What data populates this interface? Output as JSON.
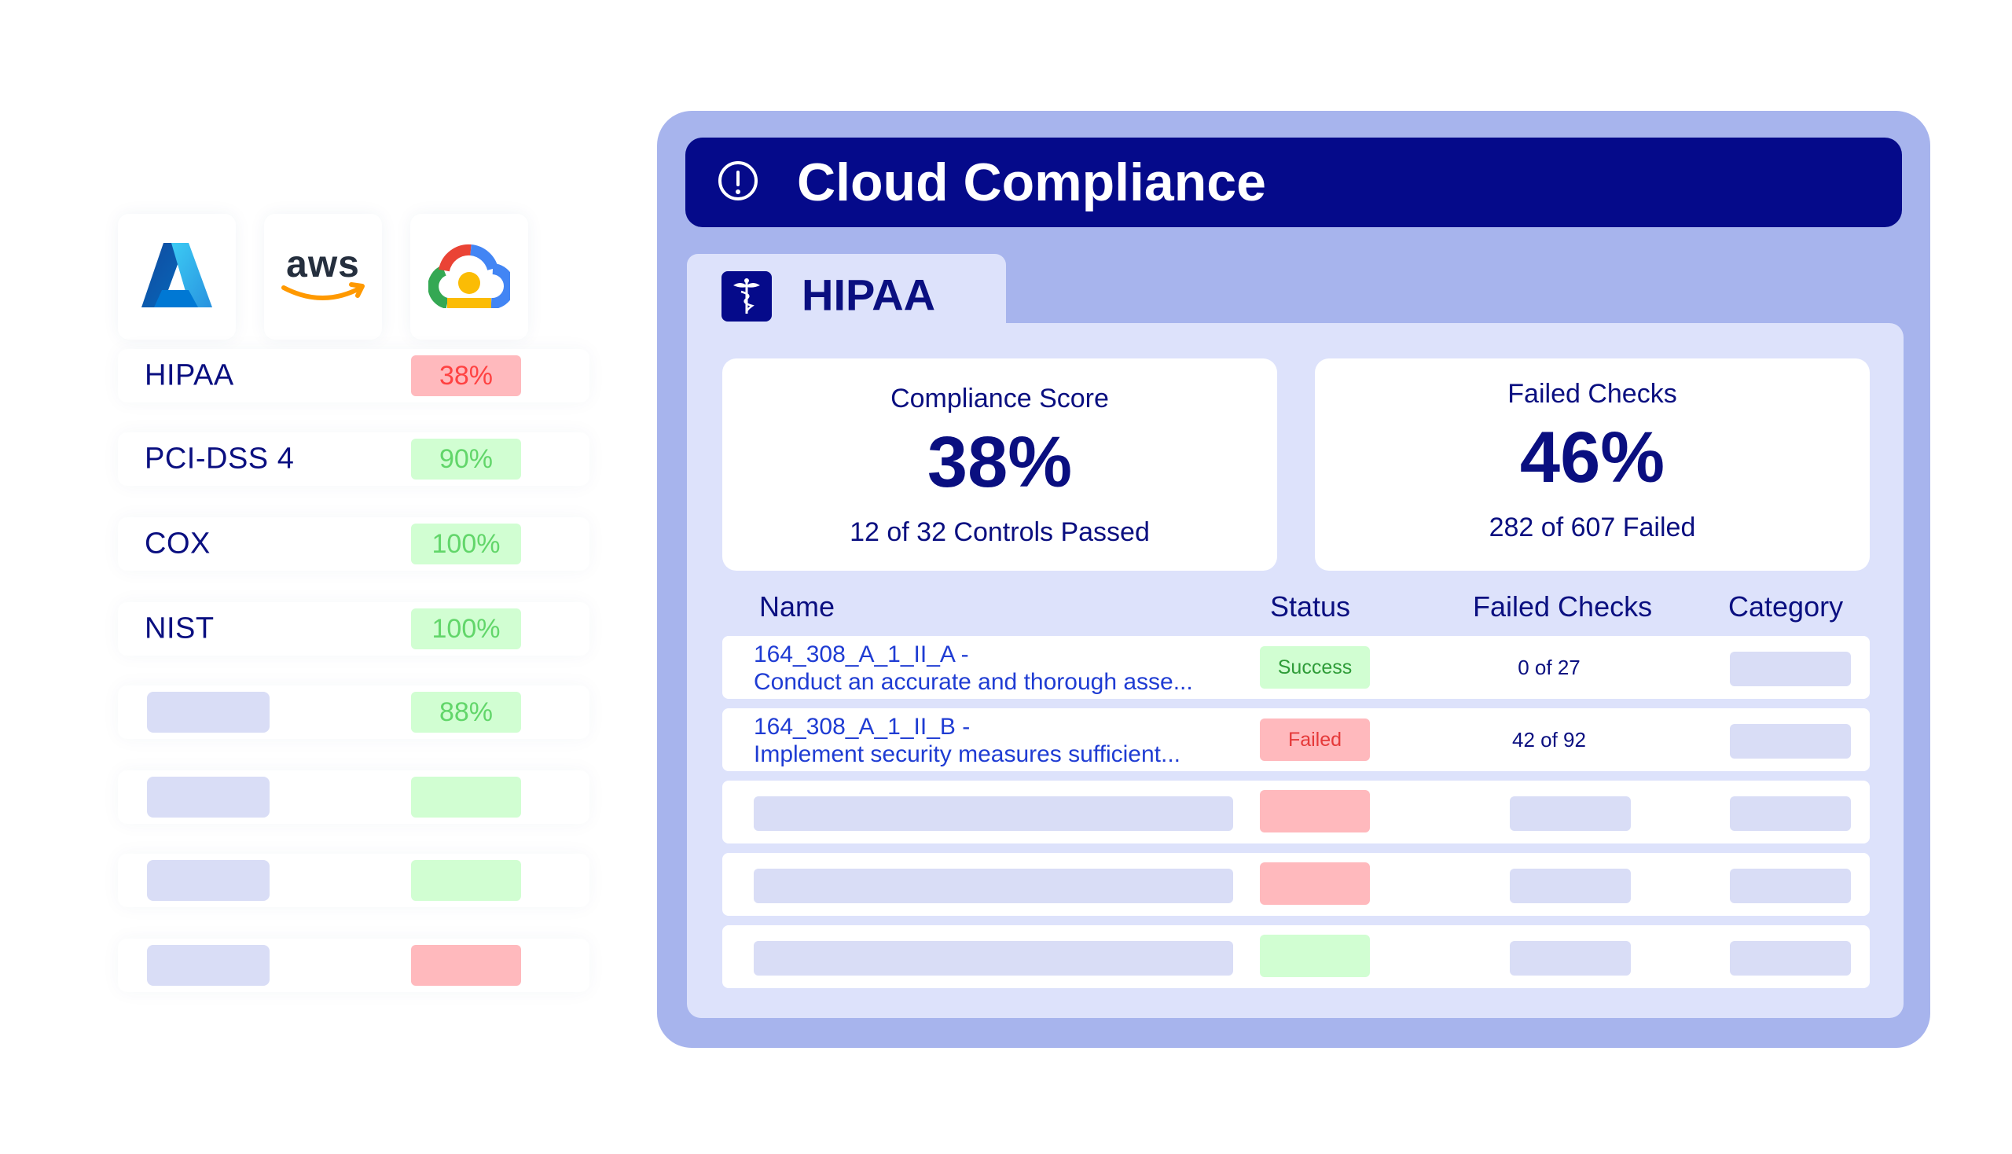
{
  "providers": [
    {
      "name": "Azure",
      "icon": "azure-icon"
    },
    {
      "name": "aws",
      "icon": "aws-icon"
    },
    {
      "name": "Google Cloud",
      "icon": "google-cloud-icon"
    }
  ],
  "frameworks": [
    {
      "name": "HIPAA",
      "score": "38%",
      "status": "red"
    },
    {
      "name": "PCI-DSS 4",
      "score": "90%",
      "status": "green"
    },
    {
      "name": "COX",
      "score": "100%",
      "status": "green"
    },
    {
      "name": "NIST",
      "score": "100%",
      "status": "green"
    },
    {
      "name": "",
      "score": "88%",
      "status": "green"
    },
    {
      "name": "",
      "score": "",
      "status": "green"
    },
    {
      "name": "",
      "score": "",
      "status": "green"
    },
    {
      "name": "",
      "score": "",
      "status": "red"
    }
  ],
  "header": {
    "title": "Cloud Compliance",
    "icon": "alert-circle-icon"
  },
  "tab": {
    "label": "HIPAA",
    "icon": "caduceus-icon"
  },
  "stats": {
    "compliance": {
      "title": "Compliance Score",
      "value": "38%",
      "sub": "12 of 32 Controls Passed"
    },
    "failed": {
      "title": "Failed Checks",
      "value": "46%",
      "sub": "282 of 607 Failed"
    }
  },
  "table": {
    "headers": {
      "name": "Name",
      "status": "Status",
      "failed": "Failed Checks",
      "category": "Category"
    },
    "rows": [
      {
        "id": "164_308_A_1_II_A -",
        "desc": "Conduct an accurate and thorough asse...",
        "status": "Success",
        "failed": "0 of 27"
      },
      {
        "id": "164_308_A_1_II_B -",
        "desc": "Implement security measures sufficient...",
        "status": "Failed",
        "failed": "42 of 92"
      }
    ],
    "placeholder_rows": [
      {
        "status": "red"
      },
      {
        "status": "red"
      },
      {
        "status": "green"
      }
    ]
  },
  "colors": {
    "navy": "#050a8a",
    "card_bg": "#a7b4ed",
    "panel_bg": "#dde2fb",
    "red_badge": "#ffb9bd",
    "green_badge": "#d1fed2",
    "link_blue": "#1f3cd3"
  }
}
